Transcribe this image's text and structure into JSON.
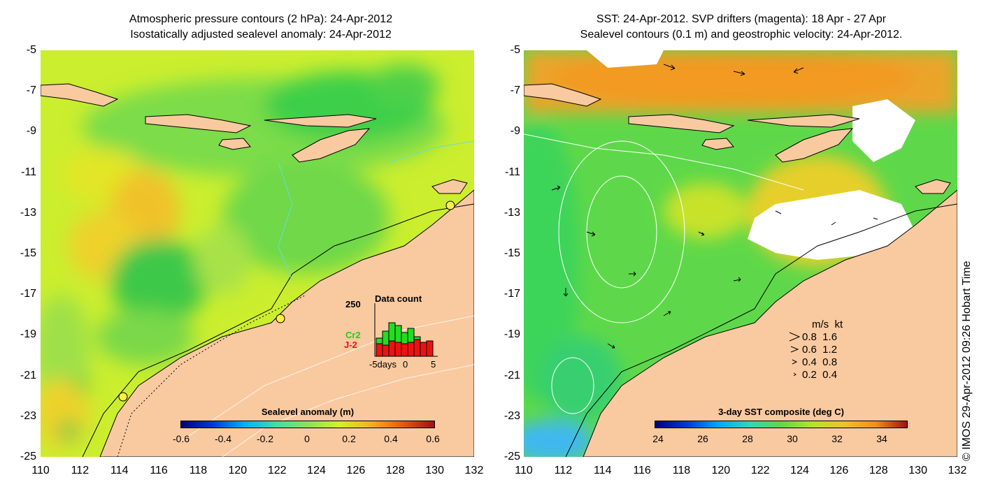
{
  "left_panel": {
    "title_line1": "Atmospheric pressure contours (2 hPa): 24-Apr-2012",
    "title_line2": "Isostatically adjusted sealevel anomaly: 24-Apr-2012",
    "colorbar_label": "Sealevel anomaly (m)",
    "colorbar_ticks": [
      "-0.6",
      "-0.4",
      "-0.2",
      "0",
      "0.2",
      "0.4",
      "0.6"
    ],
    "inset": {
      "y_max_label": "250",
      "title": "Data count",
      "series1": "Cr2",
      "series2": "J-2",
      "x_ticks": [
        "-5days",
        "0",
        "5"
      ],
      "series1_color": "#22dd22",
      "series2_color": "#ee1111"
    }
  },
  "right_panel": {
    "title_line1": "SST: 24-Apr-2012. SVP drifters (magenta): 18 Apr - 27 Apr",
    "title_line2": "Sealevel contours (0.1 m) and geostrophic velocity: 24-Apr-2012.",
    "colorbar_label": "3-day SST composite (deg C)",
    "colorbar_ticks": [
      "24",
      "26",
      "28",
      "30",
      "32",
      "34"
    ],
    "speed_legend": {
      "header": "m/s  kt",
      "rows": [
        "0.8  1.6",
        "0.6  1.2",
        "0.4  0.8",
        "0.2  0.4"
      ]
    }
  },
  "axes": {
    "y_ticks": [
      "-5",
      "-7",
      "-9",
      "-11",
      "-13",
      "-15",
      "-17",
      "-19",
      "-21",
      "-23",
      "-25"
    ],
    "x_ticks": [
      "110",
      "112",
      "114",
      "116",
      "118",
      "120",
      "122",
      "124",
      "126",
      "128",
      "130",
      "132"
    ]
  },
  "copyright": "© IMOS 29-Apr-2012 09:26 Hobart Time",
  "colors": {
    "land": "#f9c9a0",
    "sea_green": "#8ee05a",
    "sea_yellow": "#d6ef2a",
    "sst_orange": "#eba42a"
  }
}
